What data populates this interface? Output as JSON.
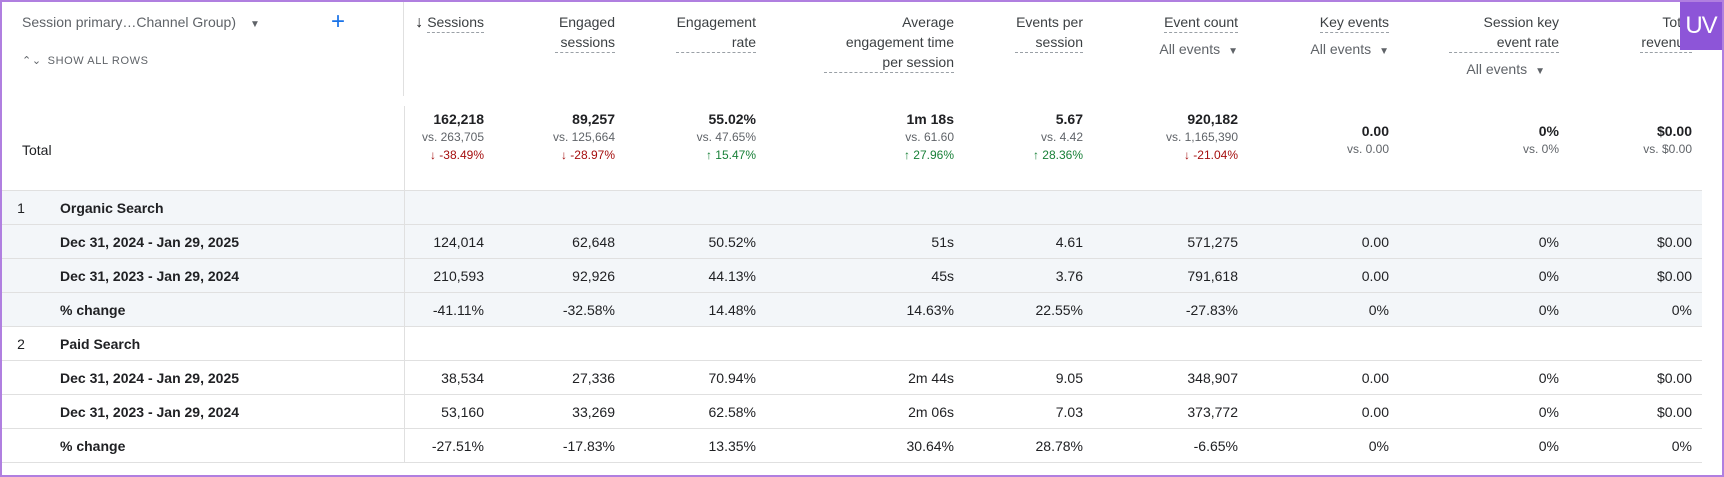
{
  "badge": "UV",
  "dimension": {
    "selector_label": "Session primary…Channel Group)",
    "add_label": "+",
    "show_all_rows": "SHOW ALL ROWS"
  },
  "columns": [
    {
      "label": "Sessions",
      "sorted": true
    },
    {
      "label": "Engaged sessions"
    },
    {
      "label": "Engagement rate"
    },
    {
      "label": "Average engagement time per session"
    },
    {
      "label": "Events per session"
    },
    {
      "label": "Event count",
      "sub": "All events"
    },
    {
      "label": "Key events",
      "sub": "All events"
    },
    {
      "label": "Session key event rate",
      "sub": "All events"
    },
    {
      "label": "Total revenue"
    }
  ],
  "total": {
    "label": "Total",
    "cells": [
      {
        "value": "162,218",
        "vs": "vs. 263,705",
        "change": "↓ -38.49%",
        "dir": "down"
      },
      {
        "value": "89,257",
        "vs": "vs. 125,664",
        "change": "↓ -28.97%",
        "dir": "down"
      },
      {
        "value": "55.02%",
        "vs": "vs. 47.65%",
        "change": "↑ 15.47%",
        "dir": "up"
      },
      {
        "value": "1m 18s",
        "vs": "vs. 61.60",
        "change": "↑ 27.96%",
        "dir": "up"
      },
      {
        "value": "5.67",
        "vs": "vs. 4.42",
        "change": "↑ 28.36%",
        "dir": "up"
      },
      {
        "value": "920,182",
        "vs": "vs. 1,165,390",
        "change": "↓ -21.04%",
        "dir": "down"
      },
      {
        "value": "0.00",
        "vs": "vs. 0.00"
      },
      {
        "value": "0%",
        "vs": "vs. 0%"
      },
      {
        "value": "$0.00",
        "vs": "vs. $0.00"
      }
    ]
  },
  "groups": [
    {
      "index": "1",
      "name": "Organic Search",
      "rows": [
        {
          "label": "Dec 31, 2024 - Jan 29, 2025",
          "values": [
            "124,014",
            "62,648",
            "50.52%",
            "51s",
            "4.61",
            "571,275",
            "0.00",
            "0%",
            "$0.00"
          ]
        },
        {
          "label": "Dec 31, 2023 - Jan 29, 2024",
          "values": [
            "210,593",
            "92,926",
            "44.13%",
            "45s",
            "3.76",
            "791,618",
            "0.00",
            "0%",
            "$0.00"
          ]
        },
        {
          "label": "% change",
          "values": [
            "-41.11%",
            "-32.58%",
            "14.48%",
            "14.63%",
            "22.55%",
            "-27.83%",
            "0%",
            "0%",
            "0%"
          ]
        }
      ]
    },
    {
      "index": "2",
      "name": "Paid Search",
      "rows": [
        {
          "label": "Dec 31, 2024 - Jan 29, 2025",
          "values": [
            "38,534",
            "27,336",
            "70.94%",
            "2m 44s",
            "9.05",
            "348,907",
            "0.00",
            "0%",
            "$0.00"
          ]
        },
        {
          "label": "Dec 31, 2023 - Jan 29, 2024",
          "values": [
            "53,160",
            "33,269",
            "62.58%",
            "2m 06s",
            "7.03",
            "373,772",
            "0.00",
            "0%",
            "$0.00"
          ]
        },
        {
          "label": "% change",
          "values": [
            "-27.51%",
            "-17.83%",
            "13.35%",
            "30.64%",
            "28.78%",
            "-6.65%",
            "0%",
            "0%",
            "0%"
          ]
        }
      ]
    }
  ],
  "colors": {
    "up": "#188038",
    "down": "#a50e0e",
    "accent": "#1a73e8",
    "badge": "#8d55d8",
    "shade": "#f3f6f9"
  }
}
